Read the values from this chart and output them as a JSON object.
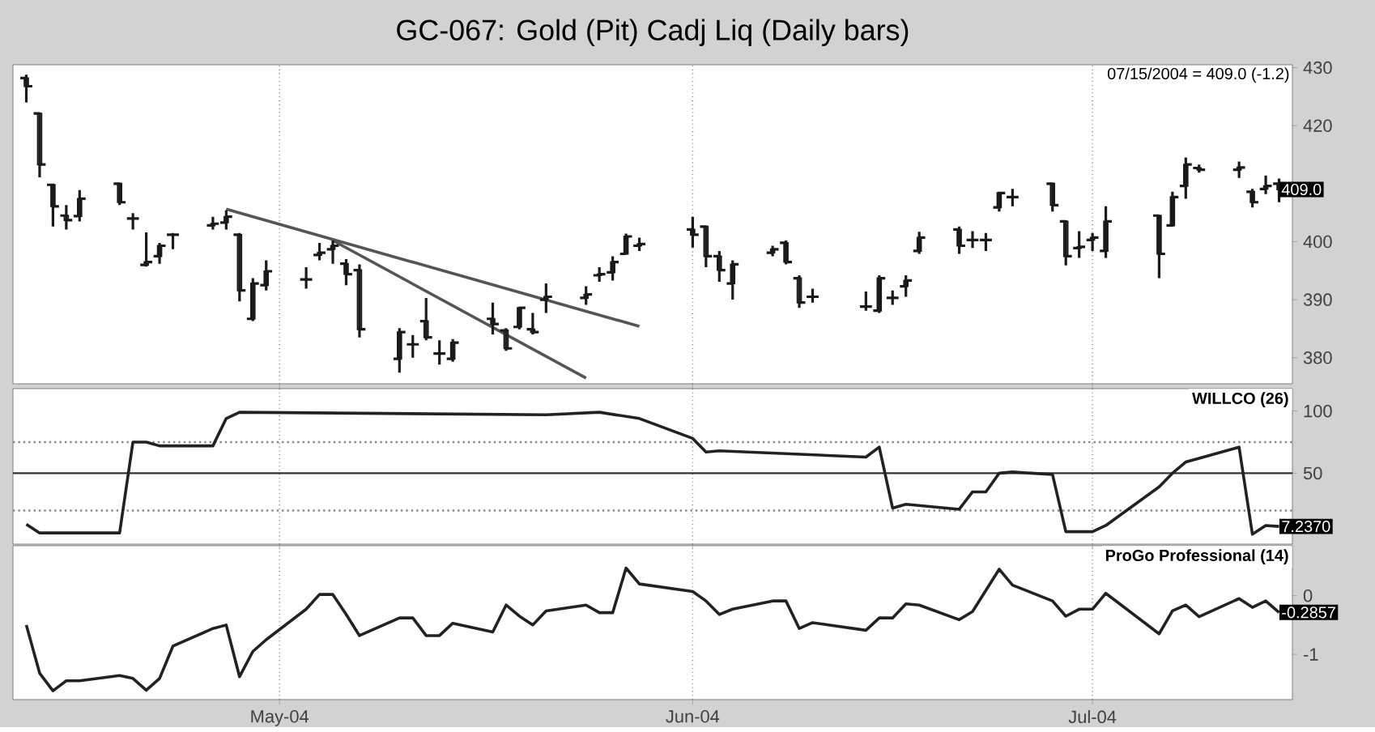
{
  "chart_data": [
    {
      "type": "candlestick",
      "title": "GC-067: Gold (Pit) Cadj Liq (Daily bars)",
      "color": "#1a1a1a",
      "x": [
        "2004-04-12",
        "2004-04-13",
        "2004-04-14",
        "2004-04-15",
        "2004-04-16",
        "2004-04-19",
        "2004-04-20",
        "2004-04-21",
        "2004-04-22",
        "2004-04-23",
        "2004-04-26",
        "2004-04-27",
        "2004-04-28",
        "2004-04-29",
        "2004-04-30",
        "2004-05-03",
        "2004-05-04",
        "2004-05-05",
        "2004-05-06",
        "2004-05-07",
        "2004-05-10",
        "2004-05-11",
        "2004-05-12",
        "2004-05-13",
        "2004-05-14",
        "2004-05-17",
        "2004-05-18",
        "2004-05-19",
        "2004-05-20",
        "2004-05-21",
        "2004-05-24",
        "2004-05-25",
        "2004-05-26",
        "2004-05-27",
        "2004-05-28",
        "2004-06-01",
        "2004-06-02",
        "2004-06-03",
        "2004-06-04",
        "2004-06-07",
        "2004-06-08",
        "2004-06-09",
        "2004-06-10",
        "2004-06-14",
        "2004-06-15",
        "2004-06-16",
        "2004-06-17",
        "2004-06-18",
        "2004-06-21",
        "2004-06-22",
        "2004-06-23",
        "2004-06-24",
        "2004-06-25",
        "2004-06-28",
        "2004-06-29",
        "2004-06-30",
        "2004-07-01",
        "2004-07-02",
        "2004-07-06",
        "2004-07-07",
        "2004-07-08",
        "2004-07-09",
        "2004-07-12",
        "2004-07-13",
        "2004-07-14",
        "2004-07-15"
      ],
      "ohlc": [
        [
          428.2,
          428.8,
          424.0,
          426.8
        ],
        [
          422.1,
          422.3,
          411.1,
          413.3
        ],
        [
          409.8,
          410.0,
          402.6,
          406.1
        ],
        [
          404.5,
          406.3,
          402.1,
          403.7
        ],
        [
          404.4,
          408.9,
          403.5,
          407.4
        ],
        [
          410.0,
          410.2,
          406.3,
          406.8
        ],
        [
          404.0,
          404.9,
          402.1,
          404.0
        ],
        [
          396.0,
          401.6,
          395.7,
          396.5
        ],
        [
          397.5,
          399.8,
          396.2,
          399.3
        ],
        [
          401.2,
          401.5,
          398.7,
          401.2
        ],
        [
          402.8,
          404.3,
          402.1,
          403.1
        ],
        [
          403.3,
          405.4,
          402.1,
          404.3
        ],
        [
          401.2,
          401.5,
          389.7,
          391.6
        ],
        [
          386.7,
          393.7,
          386.3,
          392.8
        ],
        [
          392.5,
          396.8,
          391.6,
          394.9
        ],
        [
          393.5,
          395.6,
          391.9,
          393.5
        ],
        [
          397.7,
          399.8,
          396.8,
          398.1
        ],
        [
          398.7,
          400.2,
          396.2,
          399.3
        ],
        [
          396.2,
          397.0,
          392.5,
          394.4
        ],
        [
          395.1,
          396.1,
          383.5,
          384.9
        ],
        [
          379.8,
          385.1,
          377.4,
          384.4
        ],
        [
          382.3,
          383.9,
          380.0,
          382.3
        ],
        [
          386.3,
          390.3,
          383.0,
          383.5
        ],
        [
          380.7,
          383.0,
          378.8,
          380.7
        ],
        [
          379.8,
          383.2,
          379.3,
          382.6
        ],
        [
          386.7,
          389.5,
          384.0,
          385.8
        ],
        [
          384.7,
          385.1,
          381.2,
          381.6
        ],
        [
          385.3,
          388.8,
          384.9,
          388.6
        ],
        [
          384.9,
          387.7,
          384.0,
          384.4
        ],
        [
          390.0,
          392.8,
          387.7,
          390.5
        ],
        [
          390.3,
          392.3,
          389.1,
          390.9
        ],
        [
          394.2,
          395.6,
          393.1,
          394.4
        ],
        [
          394.7,
          397.5,
          393.3,
          396.5
        ],
        [
          397.9,
          401.4,
          397.9,
          400.9
        ],
        [
          399.3,
          400.7,
          398.4,
          399.6
        ],
        [
          402.1,
          404.3,
          399.0,
          401.2
        ],
        [
          402.6,
          402.8,
          395.6,
          397.5
        ],
        [
          397.5,
          398.4,
          393.1,
          395.1
        ],
        [
          392.8,
          396.8,
          390.0,
          396.1
        ],
        [
          398.1,
          399.3,
          397.5,
          398.7
        ],
        [
          399.8,
          400.2,
          396.1,
          396.5
        ],
        [
          393.7,
          394.2,
          388.6,
          389.5
        ],
        [
          390.5,
          391.9,
          389.5,
          390.5
        ],
        [
          388.8,
          391.4,
          388.1,
          388.8
        ],
        [
          388.1,
          394.2,
          387.7,
          393.7
        ],
        [
          390.3,
          391.6,
          389.1,
          390.3
        ],
        [
          392.3,
          394.2,
          390.5,
          393.3
        ],
        [
          398.4,
          401.7,
          397.9,
          400.7
        ],
        [
          402.1,
          402.6,
          397.9,
          399.3
        ],
        [
          400.3,
          401.8,
          398.9,
          400.3
        ],
        [
          400.3,
          401.5,
          398.4,
          400.3
        ],
        [
          405.9,
          408.6,
          405.2,
          408.4
        ],
        [
          407.7,
          409.1,
          406.1,
          407.7
        ],
        [
          410.0,
          410.2,
          405.2,
          406.3
        ],
        [
          403.5,
          403.7,
          395.9,
          397.5
        ],
        [
          398.9,
          401.8,
          397.2,
          399.1
        ],
        [
          400.3,
          401.5,
          398.4,
          400.7
        ],
        [
          398.4,
          406.1,
          397.2,
          403.5
        ],
        [
          404.5,
          404.6,
          393.7,
          397.9
        ],
        [
          402.8,
          408.6,
          402.6,
          407.7
        ],
        [
          409.6,
          414.5,
          407.4,
          413.3
        ],
        [
          412.7,
          413.3,
          411.9,
          412.4
        ],
        [
          412.4,
          413.8,
          411.0,
          412.8
        ],
        [
          408.6,
          409.1,
          405.9,
          406.8
        ],
        [
          409.1,
          411.4,
          408.2,
          409.6
        ],
        [
          410.0,
          410.9,
          406.8,
          409.0
        ]
      ],
      "series": [
        {
          "type": "line",
          "color": "#555555",
          "x": [
            "2004-04-27",
            "2004-05-28"
          ],
          "values": [
            405.6,
            385.4
          ]
        },
        {
          "type": "line",
          "color": "#555555",
          "x": [
            "2004-05-05",
            "2004-05-24"
          ],
          "values": [
            400.2,
            376.5
          ]
        }
      ],
      "xlim": [
        "2004-04-11",
        "2004-07-16"
      ],
      "ylim": [
        375.5,
        430.5
      ],
      "xticks": [
        {
          "value": "2004-05-01",
          "label": null
        },
        {
          "value": "2004-06-01",
          "label": null
        },
        {
          "value": "2004-07-01",
          "label": null
        }
      ],
      "yticks": [
        380,
        390,
        400,
        420,
        430
      ],
      "grid": "x",
      "tick_labels": "y",
      "annotations": [
        "07/15/2004 = 409.0 (-1.2)",
        {
          "text": "409.0",
          "x": "2004-07-15",
          "y": 409.0
        }
      ]
    },
    {
      "type": "line",
      "title": "WILLCO (26)",
      "series": [
        {
          "color": "#222222",
          "x": [
            "2004-04-12",
            "2004-04-13",
            "2004-04-19",
            "2004-04-20",
            "2004-04-21",
            "2004-04-22",
            "2004-04-26",
            "2004-04-27",
            "2004-04-28",
            "2004-05-21",
            "2004-05-25",
            "2004-05-28",
            "2004-06-01",
            "2004-06-02",
            "2004-06-03",
            "2004-06-14",
            "2004-06-15",
            "2004-06-16",
            "2004-06-17",
            "2004-06-21",
            "2004-06-22",
            "2004-06-23",
            "2004-06-24",
            "2004-06-25",
            "2004-06-28",
            "2004-06-29",
            "2004-07-01",
            "2004-07-02",
            "2004-07-06",
            "2004-07-07",
            "2004-07-08",
            "2004-07-09",
            "2004-07-12",
            "2004-07-13",
            "2004-07-14",
            "2004-07-15"
          ],
          "values": [
            9,
            2,
            2,
            75,
            75,
            72,
            72,
            94,
            99,
            97,
            99,
            94,
            78,
            67,
            68,
            63,
            71,
            22,
            25,
            21,
            35,
            35,
            50,
            51,
            49,
            3,
            3,
            8,
            39,
            50,
            59,
            62,
            71,
            1,
            8,
            7.237
          ]
        }
      ],
      "xlim": [
        "2004-04-11",
        "2004-07-16"
      ],
      "ylim": [
        -7,
        118
      ],
      "xticks": [
        {
          "value": "2004-05-01",
          "label": null
        },
        {
          "value": "2004-06-01",
          "label": null
        },
        {
          "value": "2004-07-01",
          "label": null
        }
      ],
      "yticks": [
        50,
        100
      ],
      "grid": "x",
      "tick_labels": "y",
      "ref_lines": [
        {
          "axis": "y",
          "value": 50,
          "color": "#333333",
          "line_style": "solid"
        },
        {
          "axis": "y",
          "value": 75,
          "color": "#888888",
          "line_style": "dotted"
        },
        {
          "axis": "y",
          "value": 20,
          "color": "#888888",
          "line_style": "dotted"
        }
      ],
      "annotations": [
        {
          "text": "7.2370",
          "x": "2004-07-15",
          "y": 7.237
        }
      ]
    },
    {
      "type": "line",
      "title": "ProGo Professional (14)",
      "x": [
        "2004-04-12",
        "2004-04-13",
        "2004-04-14",
        "2004-04-15",
        "2004-04-16",
        "2004-04-19",
        "2004-04-20",
        "2004-04-21",
        "2004-04-22",
        "2004-04-23",
        "2004-04-26",
        "2004-04-27",
        "2004-04-28",
        "2004-04-29",
        "2004-04-30",
        "2004-05-03",
        "2004-05-04",
        "2004-05-05",
        "2004-05-06",
        "2004-05-07",
        "2004-05-10",
        "2004-05-11",
        "2004-05-12",
        "2004-05-13",
        "2004-05-14",
        "2004-05-17",
        "2004-05-18",
        "2004-05-19",
        "2004-05-20",
        "2004-05-21",
        "2004-05-24",
        "2004-05-25",
        "2004-05-26",
        "2004-05-27",
        "2004-05-28",
        "2004-06-01",
        "2004-06-02",
        "2004-06-03",
        "2004-06-04",
        "2004-06-07",
        "2004-06-08",
        "2004-06-09",
        "2004-06-10",
        "2004-06-14",
        "2004-06-15",
        "2004-06-16",
        "2004-06-17",
        "2004-06-18",
        "2004-06-21",
        "2004-06-22",
        "2004-06-23",
        "2004-06-24",
        "2004-06-25",
        "2004-06-28",
        "2004-06-29",
        "2004-06-30",
        "2004-07-01",
        "2004-07-02",
        "2004-07-06",
        "2004-07-07",
        "2004-07-08",
        "2004-07-09",
        "2004-07-12",
        "2004-07-13",
        "2004-07-14",
        "2004-07-15"
      ],
      "series": [
        {
          "color": "#222222",
          "values": [
            -0.5,
            -1.32,
            -1.62,
            -1.45,
            -1.45,
            -1.36,
            -1.41,
            -1.61,
            -1.41,
            -0.86,
            -0.56,
            -0.5,
            -1.38,
            -0.95,
            -0.75,
            -0.23,
            0.02,
            0.02,
            -0.32,
            -0.68,
            -0.38,
            -0.38,
            -0.68,
            -0.68,
            -0.47,
            -0.62,
            -0.16,
            -0.35,
            -0.5,
            -0.26,
            -0.16,
            -0.29,
            -0.29,
            0.47,
            0.2,
            0.07,
            -0.09,
            -0.32,
            -0.23,
            -0.09,
            -0.09,
            -0.56,
            -0.46,
            -0.59,
            -0.38,
            -0.38,
            -0.14,
            -0.16,
            -0.41,
            -0.27,
            0.09,
            0.45,
            0.18,
            -0.09,
            -0.35,
            -0.23,
            -0.23,
            0.04,
            -0.65,
            -0.26,
            -0.16,
            -0.36,
            -0.05,
            -0.2,
            -0.09,
            -0.2857
          ]
        }
      ],
      "xlim": [
        "2004-04-11",
        "2004-07-16"
      ],
      "ylim": [
        -1.77,
        0.85
      ],
      "xticks": [
        {
          "value": "2004-05-01",
          "label": "May-04"
        },
        {
          "value": "2004-06-01",
          "label": "Jun-04"
        },
        {
          "value": "2004-07-01",
          "label": "Jul-04"
        }
      ],
      "yticks": [
        -1,
        0
      ],
      "grid": "x",
      "annotations": [
        {
          "text": "-0.2857",
          "x": "2004-07-15",
          "y": -0.2857
        }
      ]
    }
  ]
}
